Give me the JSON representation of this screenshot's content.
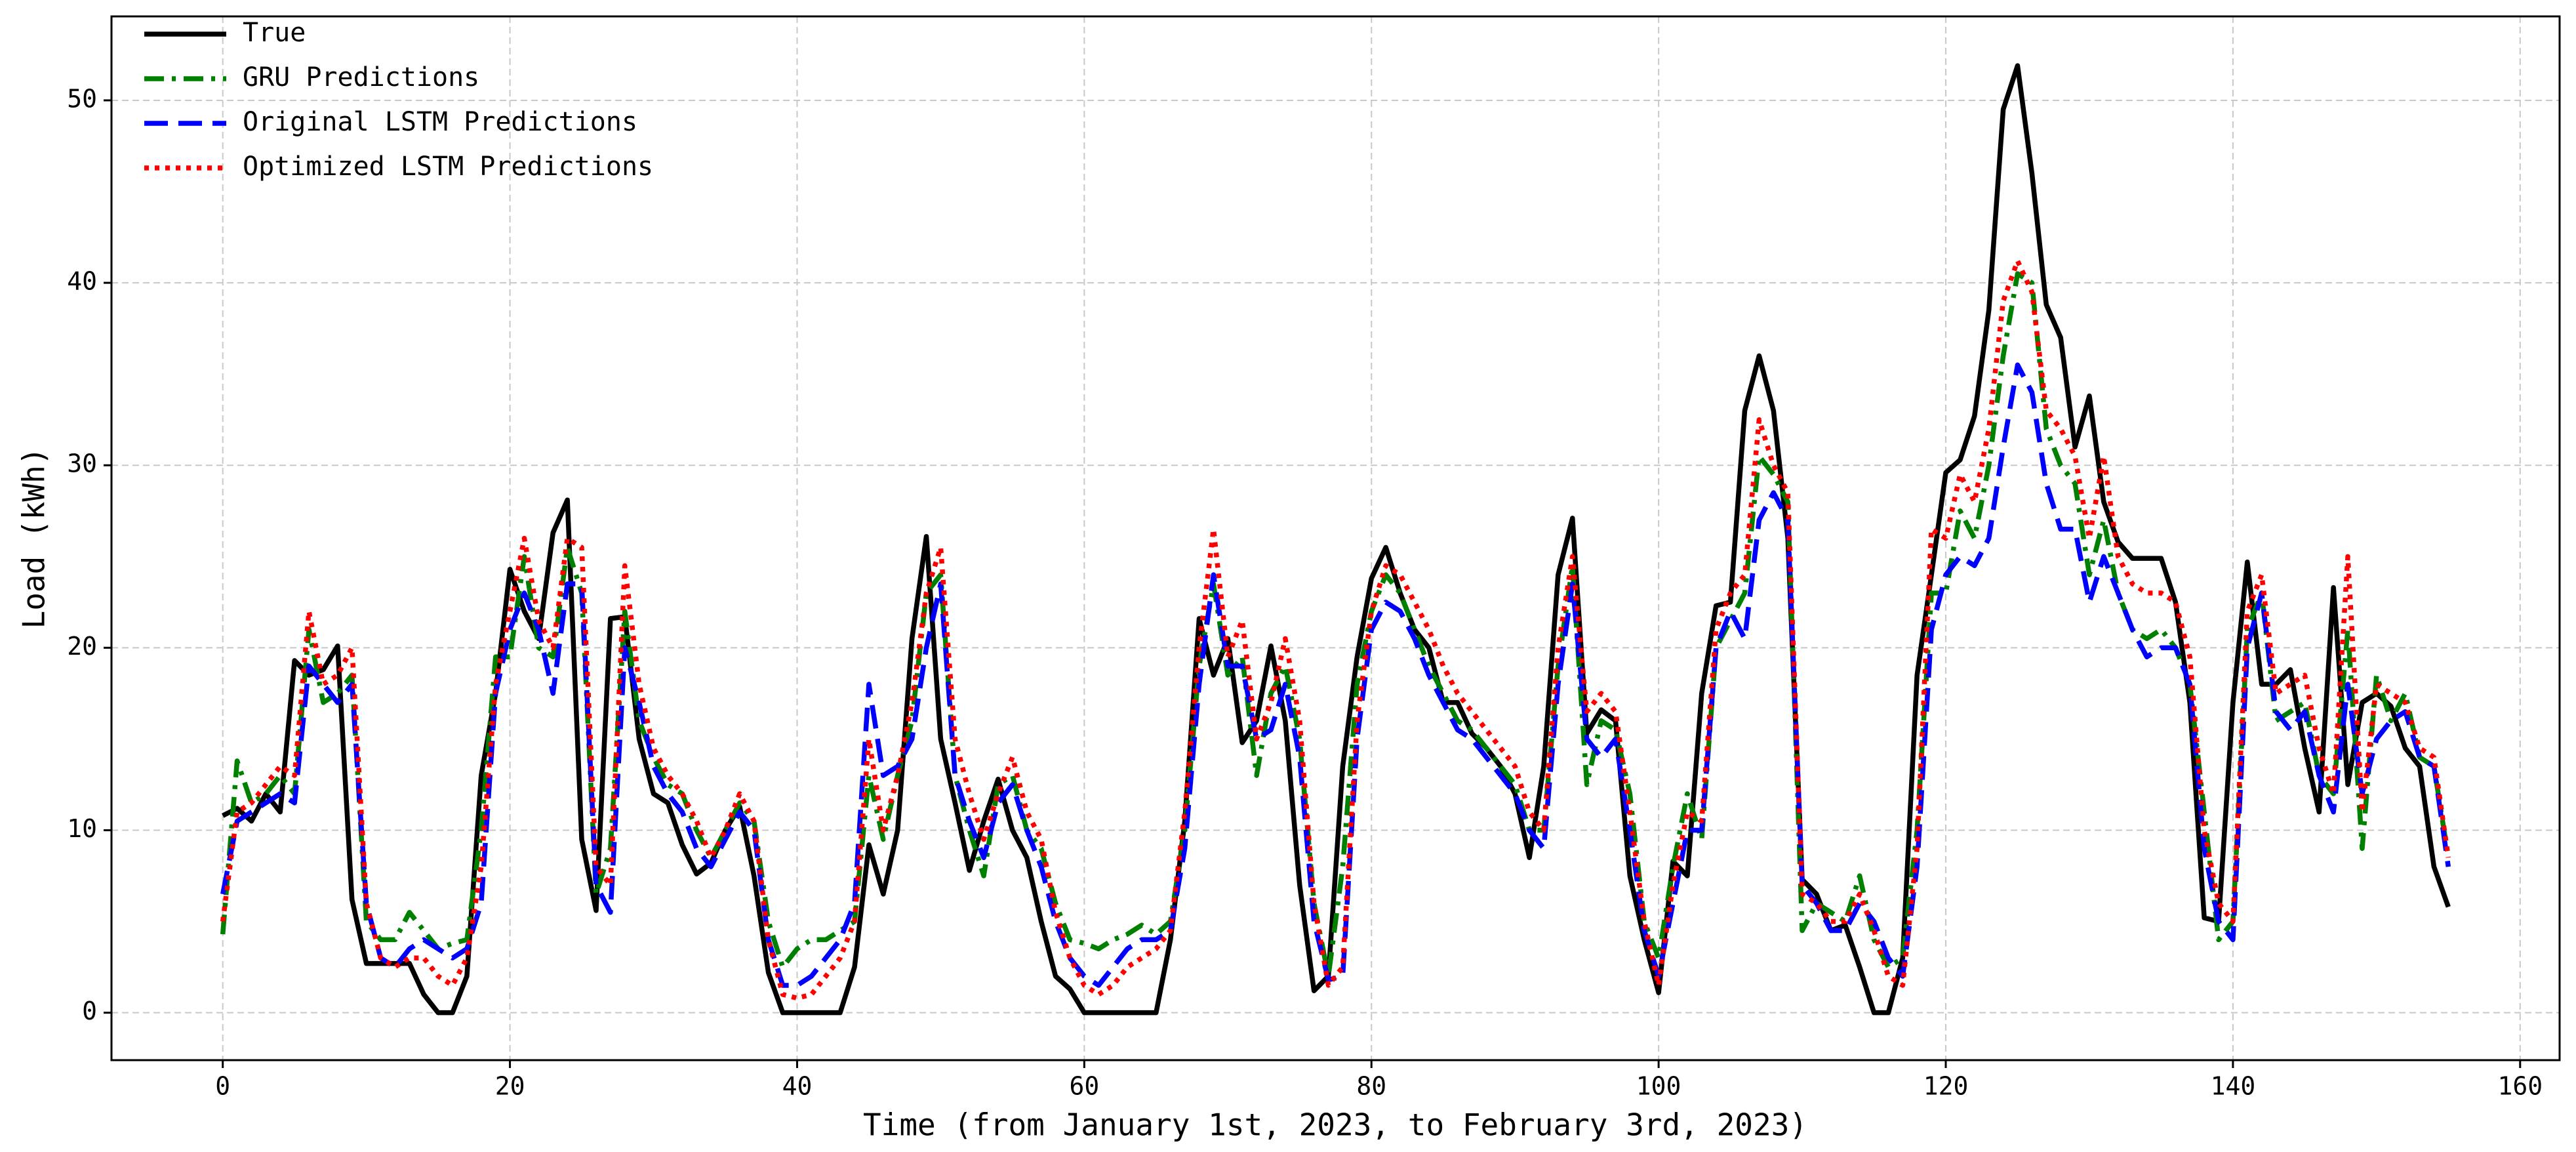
{
  "chart_data": {
    "type": "line",
    "xlabel": "Time (from January 1st, 2023, to February 3rd, 2023)",
    "ylabel": "Load (kWh)",
    "x": [
      0,
      1,
      2,
      3,
      4,
      5,
      6,
      7,
      8,
      9,
      10,
      11,
      12,
      13,
      14,
      15,
      16,
      17,
      18,
      19,
      20,
      21,
      22,
      23,
      24,
      25,
      26,
      27,
      28,
      29,
      30,
      31,
      32,
      33,
      34,
      35,
      36,
      37,
      38,
      39,
      40,
      41,
      42,
      43,
      44,
      45,
      46,
      47,
      48,
      49,
      50,
      51,
      52,
      53,
      54,
      55,
      56,
      57,
      58,
      59,
      60,
      61,
      62,
      63,
      64,
      65,
      66,
      67,
      68,
      69,
      70,
      71,
      72,
      73,
      74,
      75,
      76,
      77,
      78,
      79,
      80,
      81,
      82,
      83,
      84,
      85,
      86,
      87,
      88,
      89,
      90,
      91,
      92,
      93,
      94,
      95,
      96,
      97,
      98,
      99,
      100,
      101,
      102,
      103,
      104,
      105,
      106,
      107,
      108,
      109,
      110,
      111,
      112,
      113,
      114,
      115,
      116,
      117,
      118,
      119,
      120,
      121,
      122,
      123,
      124,
      125,
      126,
      127,
      128,
      129,
      130,
      131,
      132,
      133,
      134,
      135,
      136,
      137,
      138,
      139,
      140,
      141,
      142,
      143,
      144,
      145,
      146,
      147,
      148,
      149,
      150,
      151,
      152,
      153,
      154,
      155
    ],
    "series": [
      {
        "name": "True",
        "color": "#000000",
        "linestyle": "solid",
        "values": [
          10.8,
          11.2,
          10.5,
          12,
          11,
          19.3,
          18.5,
          18.8,
          20.1,
          6.2,
          2.7,
          2.7,
          2.7,
          2.7,
          1,
          0,
          0,
          2,
          13,
          17.5,
          24.3,
          22,
          20.5,
          26.3,
          28.1,
          9.5,
          5.6,
          21.6,
          21.7,
          15,
          12,
          11.5,
          9.2,
          7.6,
          8.2,
          10,
          11.3,
          7.5,
          2.2,
          0,
          0,
          0,
          0,
          0,
          2.5,
          9.2,
          6.5,
          10,
          20.5,
          26.1,
          15,
          11.5,
          7.8,
          10.5,
          12.8,
          10,
          8.5,
          5,
          2,
          1.3,
          0,
          0,
          0,
          0,
          0,
          0,
          4,
          10.5,
          21.6,
          18.5,
          20.5,
          14.8,
          16,
          20.1,
          16,
          7,
          1.2,
          2,
          13.5,
          19.5,
          23.8,
          25.5,
          23,
          21,
          20,
          17,
          17,
          15.3,
          14.5,
          13.5,
          12,
          8.5,
          13.5,
          24,
          27.1,
          15.3,
          16.6,
          16,
          7.5,
          4,
          1.1,
          8.3,
          7.5,
          17.5,
          22.3,
          22.5,
          33,
          36,
          33,
          26,
          7.3,
          6.5,
          4.5,
          4.8,
          2.5,
          0,
          0,
          3,
          18.5,
          24,
          29.6,
          30.3,
          32.7,
          38.5,
          49.5,
          51.9,
          46,
          38.8,
          37,
          31,
          33.8,
          28,
          25.8,
          24.9,
          24.9,
          24.9,
          22.5,
          17,
          5.2,
          5,
          17,
          24.7,
          18,
          18,
          18.8,
          14.5,
          11,
          23.3,
          12.5,
          17,
          17.5,
          16.8,
          14.5,
          13.5,
          8,
          5.8
        ]
      },
      {
        "name": "GRU Predictions",
        "color": "#008000",
        "linestyle": "dashdot",
        "values": [
          4.3,
          13.8,
          11.5,
          12,
          13,
          12,
          21,
          17,
          17.5,
          18.5,
          5,
          4,
          4,
          5.5,
          4.5,
          3.5,
          3.8,
          4,
          10,
          19.5,
          19.5,
          25,
          20,
          19.5,
          25.5,
          23,
          6.5,
          9,
          22,
          16,
          14,
          12.5,
          12,
          10,
          8.5,
          10,
          11.5,
          10.5,
          5,
          2.5,
          3.5,
          4,
          4,
          4.5,
          5,
          13,
          9.5,
          13,
          16,
          23,
          24,
          13,
          10,
          7.5,
          12.5,
          13,
          10,
          9,
          6,
          4,
          3.8,
          3.5,
          4,
          4.3,
          4.8,
          4.3,
          5,
          10,
          19,
          23.5,
          18.5,
          19.5,
          13,
          17.5,
          19,
          15,
          6,
          2,
          8,
          18,
          22,
          24,
          23,
          21,
          19,
          17.5,
          16,
          15.5,
          14.5,
          13.5,
          12.5,
          10,
          10,
          19,
          24.5,
          12.5,
          16,
          15.5,
          12,
          5,
          3,
          8,
          12,
          9.5,
          20,
          21.5,
          23,
          30.5,
          29.5,
          28,
          4.5,
          6,
          5.5,
          5,
          7.5,
          4,
          2.5,
          3,
          10,
          23,
          23,
          27.5,
          26,
          30,
          36,
          40.5,
          40,
          32,
          30,
          29,
          24,
          27,
          23,
          21,
          20.5,
          21,
          20,
          18,
          11,
          4,
          5,
          21,
          23,
          16,
          16.5,
          17,
          13,
          12,
          21,
          9,
          18.5,
          16,
          17.5,
          14,
          13.5,
          8.5
        ]
      },
      {
        "name": "Original LSTM Predictions",
        "color": "#0000ff",
        "linestyle": "dashed",
        "values": [
          6.5,
          10.5,
          11,
          11.5,
          12,
          11.5,
          19,
          18,
          17,
          18,
          6,
          3,
          2.5,
          3.5,
          4,
          3.5,
          3,
          3.5,
          6,
          17.5,
          21,
          23,
          21,
          17.5,
          23.5,
          23.5,
          7,
          5.5,
          20,
          17,
          13.5,
          12,
          11,
          9,
          8,
          9.5,
          11,
          10,
          4,
          1.5,
          1.5,
          2,
          3,
          4,
          6,
          18,
          13,
          13.5,
          15,
          20,
          23.5,
          13,
          10.5,
          8.5,
          11.5,
          12.5,
          10,
          8,
          5,
          3,
          2,
          1.5,
          2.5,
          3.5,
          4,
          4,
          4.5,
          9,
          18,
          24,
          19,
          19,
          15,
          15.5,
          18,
          14,
          5,
          1.8,
          2,
          15,
          21,
          22.5,
          22,
          20.5,
          18.5,
          17,
          15.5,
          15,
          14,
          13,
          12,
          10,
          9,
          18,
          23.5,
          15,
          14,
          15,
          10,
          4.5,
          2,
          6,
          10,
          10,
          20,
          22,
          20.5,
          27,
          28.5,
          27,
          7,
          6,
          4.5,
          4.5,
          6,
          5,
          3,
          2,
          8,
          21,
          24,
          25,
          24.5,
          26,
          31,
          35.5,
          34,
          29,
          26.5,
          26.5,
          22.5,
          25,
          23,
          21,
          19.5,
          20,
          20,
          18,
          9,
          5,
          4,
          20,
          23,
          16.5,
          15.5,
          16.5,
          13,
          11,
          18,
          12,
          15,
          16,
          16.5,
          14,
          13.5,
          8
        ]
      },
      {
        "name": "Optimized LSTM Predictions",
        "color": "#ff0000",
        "linestyle": "dotted",
        "values": [
          5,
          11,
          11.5,
          12.5,
          13.5,
          13,
          22,
          18,
          18.5,
          20,
          6,
          3,
          2.5,
          3,
          3,
          2,
          1.5,
          3,
          8,
          18,
          22,
          26,
          21.5,
          20,
          26,
          25.5,
          8,
          7,
          24.5,
          18,
          14.5,
          13,
          12,
          10.5,
          8.5,
          10,
          12,
          10.5,
          4,
          1,
          0.8,
          1,
          2,
          3,
          5,
          15,
          10,
          13,
          17,
          23,
          25.5,
          15,
          12,
          9.5,
          12,
          14,
          11,
          9.5,
          5.5,
          3,
          1.5,
          1,
          1.5,
          2.5,
          3,
          3.5,
          4.5,
          11,
          20,
          26.5,
          19.5,
          21.5,
          15,
          17,
          20.5,
          16,
          6,
          1.5,
          2.5,
          16,
          22,
          24.5,
          24,
          22.5,
          21,
          19,
          17.5,
          16.5,
          15.5,
          14.5,
          13.5,
          11,
          10,
          20,
          25,
          16.5,
          17.5,
          16.5,
          11,
          5,
          1.5,
          7,
          11,
          10.5,
          21,
          23,
          24,
          32.5,
          30,
          28.5,
          6.5,
          6,
          5,
          5,
          6.5,
          4.5,
          2,
          1.5,
          9,
          26.5,
          26,
          29.5,
          28,
          32,
          39,
          41.2,
          39.5,
          33,
          32,
          30.5,
          26,
          30.5,
          25,
          23.5,
          23,
          23,
          22.5,
          19.5,
          10,
          6,
          5,
          22,
          24,
          17.5,
          18,
          18.5,
          14.5,
          12,
          25,
          11,
          18,
          17.5,
          17,
          14.5,
          14,
          8.5
        ]
      }
    ],
    "xlim": [
      -7.75,
      162.75
    ],
    "ylim": [
      -2.6,
      54.6
    ],
    "xticks": [
      0,
      20,
      40,
      60,
      80,
      100,
      120,
      140,
      160
    ],
    "yticks": [
      0,
      10,
      20,
      30,
      40,
      50
    ],
    "grid": true,
    "legend": "upper left"
  }
}
